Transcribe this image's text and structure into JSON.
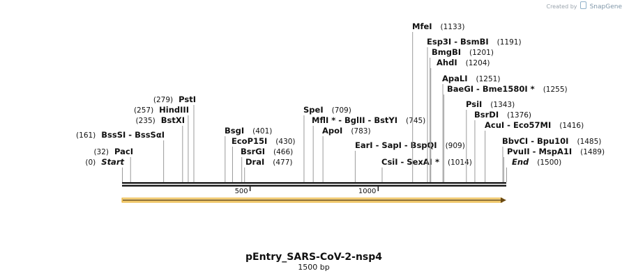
{
  "credit": {
    "prefix": "Created by",
    "brand": "SnapGene"
  },
  "plasmid": {
    "name": "pEntry_SARS-CoV-2-nsp4",
    "size_label": "1500 bp",
    "length_bp": 1500
  },
  "axis": {
    "ticks": [
      {
        "bp": 500,
        "label": "500"
      },
      {
        "bp": 1000,
        "label": "1000"
      }
    ]
  },
  "feature": {
    "name": "feature-arrow",
    "start": 0,
    "end": 1500,
    "direction": "forward",
    "color": "#e6a81e"
  },
  "sites": [
    {
      "pos": "(0)",
      "names": "Start",
      "bp": 0,
      "italic": true,
      "side": "left"
    },
    {
      "pos": "(32)",
      "names": "PacI",
      "bp": 32,
      "side": "left"
    },
    {
      "pos": "(161)",
      "names": "BssSI  -  BssSαI",
      "bp": 161,
      "side": "left"
    },
    {
      "pos": "(235)",
      "names": "BstXI",
      "bp": 235,
      "side": "left"
    },
    {
      "pos": "(257)",
      "names": "HindIII",
      "bp": 257,
      "side": "left"
    },
    {
      "pos": "(279)",
      "names": "PstI",
      "bp": 279,
      "side": "left"
    },
    {
      "pos": "(401)",
      "names": "BsgI",
      "bp": 401,
      "side": "right"
    },
    {
      "pos": "(430)",
      "names": "EcoP15I",
      "bp": 430,
      "side": "right"
    },
    {
      "pos": "(466)",
      "names": "BsrGI",
      "bp": 466,
      "side": "right"
    },
    {
      "pos": "(477)",
      "names": "DraI",
      "bp": 477,
      "side": "right"
    },
    {
      "pos": "(709)",
      "names": "SpeI",
      "bp": 709,
      "side": "right"
    },
    {
      "pos": "(745)",
      "names": "MflI *  -  BglII  -  BstYI",
      "bp": 745,
      "side": "right"
    },
    {
      "pos": "(783)",
      "names": "ApoI",
      "bp": 783,
      "side": "right"
    },
    {
      "pos": "(909)",
      "names": "EarI  -  SapI  -  BspQI",
      "bp": 909,
      "side": "right"
    },
    {
      "pos": "(1014)",
      "names": "CsiI  -  SexAI *",
      "bp": 1014,
      "side": "right"
    },
    {
      "pos": "(1133)",
      "names": "MfeI",
      "bp": 1133,
      "side": "right"
    },
    {
      "pos": "(1191)",
      "names": "Esp3I  -  BsmBI",
      "bp": 1191,
      "side": "right"
    },
    {
      "pos": "(1201)",
      "names": "BmgBI",
      "bp": 1201,
      "side": "right"
    },
    {
      "pos": "(1204)",
      "names": "AhdI",
      "bp": 1204,
      "side": "right"
    },
    {
      "pos": "(1251)",
      "names": "ApaLI",
      "bp": 1251,
      "side": "right"
    },
    {
      "pos": "(1255)",
      "names": "BaeGI  -  Bme1580I *",
      "bp": 1255,
      "side": "right"
    },
    {
      "pos": "(1343)",
      "names": "PsiI",
      "bp": 1343,
      "side": "right"
    },
    {
      "pos": "(1376)",
      "names": "BsrDI",
      "bp": 1376,
      "side": "right"
    },
    {
      "pos": "(1416)",
      "names": "AcuI  -  Eco57MI",
      "bp": 1416,
      "side": "right"
    },
    {
      "pos": "(1485)",
      "names": "BbvCI  -  Bpu10I",
      "bp": 1485,
      "side": "right"
    },
    {
      "pos": "(1489)",
      "names": "PvuII  -  MspA1I",
      "bp": 1489,
      "side": "right"
    },
    {
      "pos": "(1500)",
      "names": "End",
      "bp": 1500,
      "italic": true,
      "side": "right"
    }
  ]
}
